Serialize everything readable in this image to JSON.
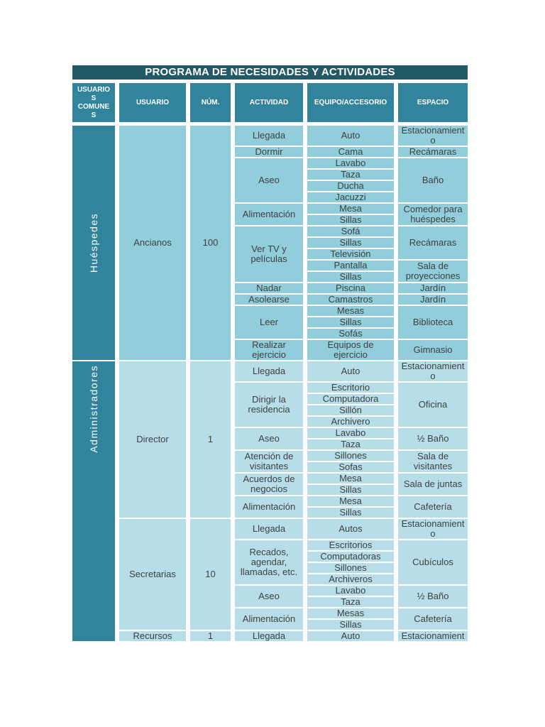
{
  "table": {
    "title": "PROGRAMA DE NECESIDADES Y ACTIVIDADES",
    "columns": [
      "USUARIOS COMUNES",
      "USUARIO",
      "NÚM.",
      "ACTIVIDAD",
      "EQUIPO/ACCESORIO",
      "ESPACIO"
    ],
    "colors": {
      "page_bg": "#FFFFFF",
      "title_bg": "#215967",
      "header_bg": "#31849B",
      "group_bg": "#31849B",
      "cell_a_bg": "#92CDDC",
      "cell_b_bg": "#B7DEE8",
      "cell_text": "#3F3F3F",
      "header_text": "#FFFFFF",
      "grid": "#FFFFFF"
    },
    "groups": [
      {
        "name": "Huéspedes",
        "users": [
          {
            "name": "Ancianos",
            "num": "100",
            "activities": [
              {
                "activity": "Llegada",
                "rows": [
                  {
                    "equipment": "Auto",
                    "space": "Estacionamiento",
                    "span": 1
                  }
                ]
              },
              {
                "activity": "Dormir",
                "rows": [
                  {
                    "equipment": "Cama",
                    "space": "Recámaras",
                    "span": 1
                  }
                ]
              },
              {
                "activity": "Aseo",
                "rows": [
                  {
                    "equipment": "Lavabo",
                    "space": "Baño",
                    "span": 4
                  },
                  {
                    "equipment": "Taza"
                  },
                  {
                    "equipment": "Ducha"
                  },
                  {
                    "equipment": "Jacuzzi"
                  }
                ]
              },
              {
                "activity": "Alimentación",
                "rows": [
                  {
                    "equipment": "Mesa",
                    "space": "Comedor para huéspedes",
                    "span": 2
                  },
                  {
                    "equipment": "Sillas"
                  }
                ]
              },
              {
                "activity": "Ver TV y películas",
                "rows": [
                  {
                    "equipment": "Sofá",
                    "space": "Recámaras",
                    "span": 3
                  },
                  {
                    "equipment": "Sillas"
                  },
                  {
                    "equipment": "Televisión"
                  },
                  {
                    "equipment": "Pantalla",
                    "space": "Sala de proyecciones",
                    "span": 2
                  },
                  {
                    "equipment": "Sillas"
                  }
                ]
              },
              {
                "activity": "Nadar",
                "rows": [
                  {
                    "equipment": "Piscina",
                    "space": "Jardín",
                    "span": 1
                  }
                ]
              },
              {
                "activity": "Asolearse",
                "rows": [
                  {
                    "equipment": "Camastros",
                    "space": "Jardín",
                    "span": 1
                  }
                ]
              },
              {
                "activity": "Leer",
                "rows": [
                  {
                    "equipment": "Mesas",
                    "space": "Biblioteca",
                    "span": 3
                  },
                  {
                    "equipment": "Sillas"
                  },
                  {
                    "equipment": "Sofás"
                  }
                ]
              },
              {
                "activity": "Realizar ejercicio",
                "rows": [
                  {
                    "equipment": "Equipos de ejercicio",
                    "space": "Gimnasio",
                    "span": 1
                  }
                ]
              }
            ]
          }
        ]
      },
      {
        "name": "Administradores",
        "users": [
          {
            "name": "Director",
            "num": "1",
            "activities": [
              {
                "activity": "Llegada",
                "rows": [
                  {
                    "equipment": "Auto",
                    "space": "Estacionamiento",
                    "span": 1
                  }
                ]
              },
              {
                "activity": "Dirigir la residencia",
                "rows": [
                  {
                    "equipment": "Escritorio",
                    "space": "Oficina",
                    "span": 4
                  },
                  {
                    "equipment": "Computadora"
                  },
                  {
                    "equipment": "Sillón"
                  },
                  {
                    "equipment": "Archivero"
                  }
                ]
              },
              {
                "activity": "Aseo",
                "rows": [
                  {
                    "equipment": "Lavabo",
                    "space": "½ Baño",
                    "span": 2
                  },
                  {
                    "equipment": "Taza"
                  }
                ]
              },
              {
                "activity": "Atención de visitantes",
                "rows": [
                  {
                    "equipment": "Sillones",
                    "space": "Sala de visitantes",
                    "span": 2
                  },
                  {
                    "equipment": "Sofas"
                  }
                ]
              },
              {
                "activity": "Acuerdos de negocios",
                "rows": [
                  {
                    "equipment": "Mesa",
                    "space": "Sala de juntas",
                    "span": 2
                  },
                  {
                    "equipment": "Sillas"
                  }
                ]
              },
              {
                "activity": "Alimentación",
                "rows": [
                  {
                    "equipment": "Mesa",
                    "space": "Cafetería",
                    "span": 2
                  },
                  {
                    "equipment": "Sillas"
                  }
                ]
              }
            ]
          },
          {
            "name": "Secretarias",
            "num": "10",
            "activities": [
              {
                "activity": "Llegada",
                "rows": [
                  {
                    "equipment": "Autos",
                    "space": "Estacionamiento",
                    "span": 1
                  }
                ]
              },
              {
                "activity": "Recados, agendar, llamadas, etc.",
                "rows": [
                  {
                    "equipment": "Escritorios",
                    "space": "Cubículos",
                    "span": 4
                  },
                  {
                    "equipment": "Computadoras"
                  },
                  {
                    "equipment": "Sillones"
                  },
                  {
                    "equipment": "Archiveros"
                  }
                ]
              },
              {
                "activity": "Aseo",
                "rows": [
                  {
                    "equipment": "Lavabo",
                    "space": "½ Baño",
                    "span": 2
                  },
                  {
                    "equipment": "Taza"
                  }
                ]
              },
              {
                "activity": "Alimentación",
                "rows": [
                  {
                    "equipment": "Mesas",
                    "space": "Cafetería",
                    "span": 2
                  },
                  {
                    "equipment": "Sillas"
                  }
                ]
              }
            ]
          },
          {
            "name": "Recursos",
            "num": "1",
            "activities": [
              {
                "activity": "Llegada",
                "rows": [
                  {
                    "equipment": "Auto",
                    "space": "Estacionamient",
                    "span": 1
                  }
                ]
              }
            ]
          }
        ]
      }
    ]
  }
}
